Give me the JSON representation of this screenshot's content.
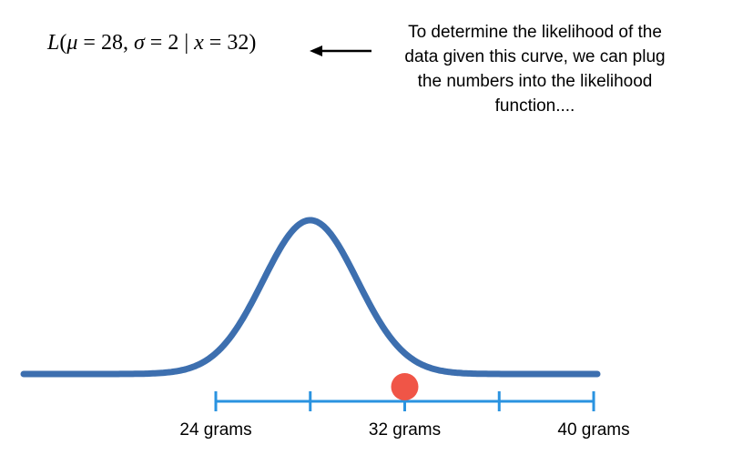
{
  "formula": {
    "fn": "L",
    "open": "(",
    "mu": "μ",
    "mu_eq": " = 28, ",
    "sigma": "σ",
    "sigma_eq": " = 2 | ",
    "x": "x",
    "x_eq": " = 32)"
  },
  "caption": {
    "lines": [
      "To determine the likelihood of the",
      "data given this curve, we can plug",
      "the numbers into the likelihood",
      "function...."
    ]
  },
  "axis": {
    "labels": [
      {
        "text": "24 grams",
        "value": 24
      },
      {
        "text": "32 grams",
        "value": 32
      },
      {
        "text": "40 grams",
        "value": 40
      }
    ],
    "ticks": [
      24,
      28,
      32,
      36,
      40
    ],
    "min": 24,
    "max": 40
  },
  "distribution": {
    "mean": 28,
    "sd": 2
  },
  "observation": {
    "x": 32
  },
  "colors": {
    "curve": "#3d6faf",
    "axis": "#2a93e0",
    "point": "#f05547",
    "text": "#000000"
  }
}
